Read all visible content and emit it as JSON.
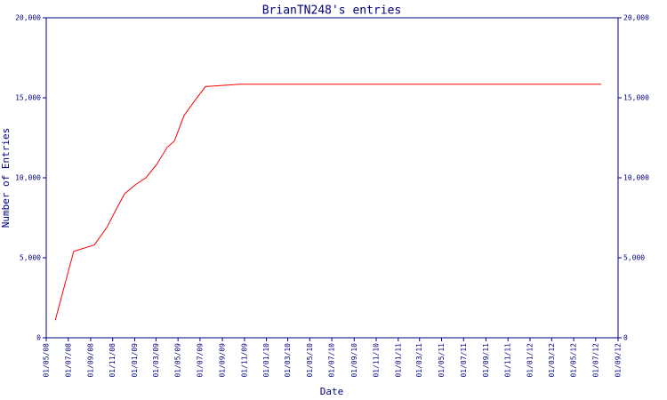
{
  "chart_data": {
    "type": "line",
    "title": "BrianTN248's entries",
    "x_label": "Date",
    "y_label": "Number of Entries",
    "xlim": [
      "2008-05-01",
      "2012-09-01"
    ],
    "xticks": [
      {
        "value": "2008-05-01",
        "label": "01/05/08"
      },
      {
        "value": "2008-07-01",
        "label": "01/07/08"
      },
      {
        "value": "2008-09-01",
        "label": "01/09/08"
      },
      {
        "value": "2008-11-01",
        "label": "01/11/08"
      },
      {
        "value": "2009-01-01",
        "label": "01/01/09"
      },
      {
        "value": "2009-03-01",
        "label": "01/03/09"
      },
      {
        "value": "2009-05-01",
        "label": "01/05/09"
      },
      {
        "value": "2009-07-01",
        "label": "01/07/09"
      },
      {
        "value": "2009-09-01",
        "label": "01/09/09"
      },
      {
        "value": "2009-11-01",
        "label": "01/11/09"
      },
      {
        "value": "2010-01-01",
        "label": "01/01/10"
      },
      {
        "value": "2010-03-01",
        "label": "01/03/10"
      },
      {
        "value": "2010-05-01",
        "label": "01/05/10"
      },
      {
        "value": "2010-07-01",
        "label": "01/07/10"
      },
      {
        "value": "2010-09-01",
        "label": "01/09/10"
      },
      {
        "value": "2010-11-01",
        "label": "01/11/10"
      },
      {
        "value": "2011-01-01",
        "label": "01/01/11"
      },
      {
        "value": "2011-03-01",
        "label": "01/03/11"
      },
      {
        "value": "2011-05-01",
        "label": "01/05/11"
      },
      {
        "value": "2011-07-01",
        "label": "01/07/11"
      },
      {
        "value": "2011-09-01",
        "label": "01/09/11"
      },
      {
        "value": "2011-11-01",
        "label": "01/11/11"
      },
      {
        "value": "2012-01-01",
        "label": "01/01/12"
      },
      {
        "value": "2012-03-01",
        "label": "01/03/12"
      },
      {
        "value": "2012-05-01",
        "label": "01/05/12"
      },
      {
        "value": "2012-07-01",
        "label": "01/07/12"
      },
      {
        "value": "2012-09-01",
        "label": "01/09/12"
      }
    ],
    "ylim": [
      0,
      20000
    ],
    "yticks": [
      0,
      {
        "value": 5000,
        "label": "5,000"
      },
      {
        "value": 10000,
        "label": "10,000"
      },
      {
        "value": 15000,
        "label": "15,000"
      },
      {
        "value": 20000,
        "label": "20,000"
      }
    ],
    "y2lim": [
      0,
      20000
    ],
    "y2ticks": [
      0,
      {
        "value": 5000,
        "label": "5,000"
      },
      {
        "value": 10000,
        "label": "10,000"
      },
      {
        "value": 15000,
        "label": "15,000"
      },
      {
        "value": 20000,
        "label": "20,000"
      }
    ],
    "x": [
      "2008-05-26",
      "2008-07-16",
      "2008-09-11",
      "2008-10-16",
      "2008-11-10",
      "2008-12-04",
      "2009-01-02",
      "2009-02-01",
      "2009-03-02",
      "2009-04-01",
      "2009-04-21",
      "2009-05-18",
      "2009-06-19",
      "2009-07-16",
      "2009-08-19",
      "2009-10-20",
      "2012-07-16"
    ],
    "series": [
      {
        "color": "#ff0000",
        "values": [
          1100,
          5400,
          5800,
          6900,
          8000,
          9000,
          9550,
          10000,
          10800,
          11900,
          12300,
          13900,
          14900,
          15700,
          15750,
          15850,
          15850
        ]
      }
    ]
  }
}
